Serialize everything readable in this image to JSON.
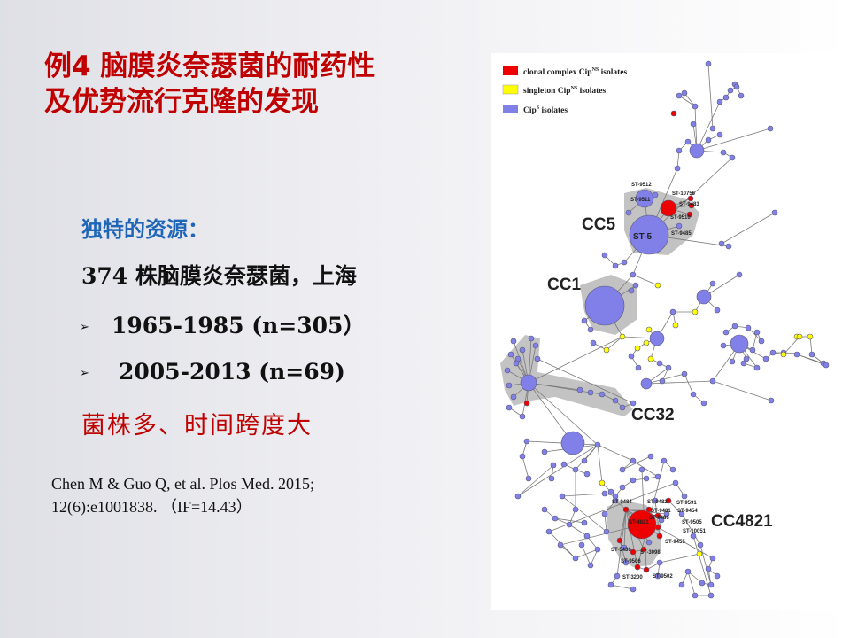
{
  "title": {
    "line1": "例4  脑膜炎奈瑟菌的耐药性",
    "line2": "及优势流行克隆的发现"
  },
  "resource_heading": "独特的资源：",
  "summary": "374 株脑膜炎奈瑟菌，上海",
  "bullets": [
    {
      "arrow": "➢",
      "text": "1965-1985 (n=305）"
    },
    {
      "arrow": "➢",
      "text": "2005-2013 (n=69)"
    }
  ],
  "highlight": "菌株多、时间跨度大",
  "citation": {
    "line1": "Chen M & Guo Q, et al. Plos Med. 2015;",
    "line2": "12(6):e1001838. （IF=14.43）"
  },
  "legend": [
    {
      "main": "clonal complex Cip",
      "sup": "NS",
      "tail": " isolates",
      "color": "#ee0000"
    },
    {
      "main": "singleton Cip",
      "sup": "NS",
      "tail": " isolates",
      "color": "#ffff00"
    },
    {
      "main": "Cip",
      "sup": "S",
      "tail": " isolates",
      "color": "#8080e8"
    }
  ],
  "clonal_complexes": {
    "cc5": "CC5",
    "cc1": "CC1",
    "cc32": "CC32",
    "cc4821": "CC4821"
  },
  "sequence_types": {
    "st5": "ST-5",
    "st9512": "ST-9512",
    "st10756": "ST-10756",
    "st9511": "ST-9511",
    "st9483": "ST-9483",
    "st9510": "ST-9510",
    "st9485": "ST-9485",
    "st4821": "ST-4821",
    "st9484": "ST-9484",
    "st9482": "ST-9482",
    "st9591": "ST-9591",
    "st9454": "ST-9454",
    "st9505": "ST-9505",
    "st10051": "ST-10051",
    "st9455": "ST-9455",
    "st5436": "ST-5436",
    "st3098": "ST-3098",
    "st9506": "ST-9506",
    "st3200": "ST-3200",
    "st9502": "ST-9502",
    "st9481": "ST-9481",
    "st9486": "ST-9486"
  },
  "colors": {
    "resistant": "#ee0000",
    "singleton": "#ffff00",
    "susceptible": "#8080e8",
    "cluster_shade": "#b8b8b8",
    "title": "#c00000",
    "heading": "#1f66b8"
  }
}
